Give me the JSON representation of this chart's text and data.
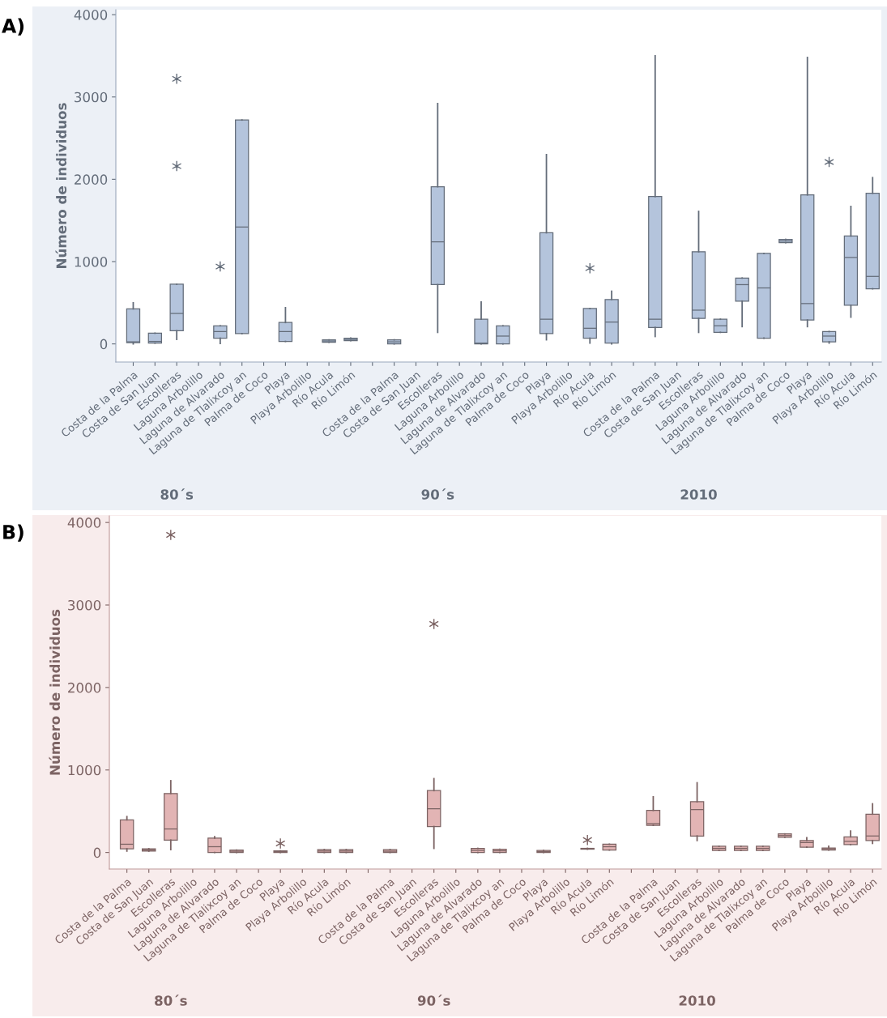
{
  "chart_data": [
    {
      "type": "box",
      "title": "A)",
      "ylabel": "Número de individuos",
      "ylim": [
        -220,
        4060
      ],
      "yticks": [
        0,
        1000,
        2000,
        3000,
        4000
      ],
      "grid": false,
      "marker": "star",
      "categories": [
        "Costa de la Palma",
        "Costa de San Juan",
        "Escolleras",
        "Laguna Arbolillo",
        "Laguna de Alvarado",
        "Laguna de Tlalixcoy an",
        "Palma de Coco",
        "Playa",
        "Playa Arbolillo",
        "Río Acula",
        "Río Limón",
        null,
        "Costa de la Palma",
        "Costa de San Juan",
        "Escolleras",
        "Laguna Arbolillo",
        "Laguna de Alvarado",
        "Laguna de Tlalixcoy an",
        "Palma de Coco",
        "Playa",
        "Playa Arbolillo",
        "Río Acula",
        "Río Limón",
        null,
        "Costa de la Palma",
        "Costa de San Juan",
        "Escolleras",
        "Laguna Arbolillo",
        "Laguna de Alvarado",
        "Laguna de Tlalixcoy an",
        "Palma de Coco",
        "Playa",
        "Playa Arbolillo",
        "Río Acula",
        "Río Limón"
      ],
      "series": [
        {
          "color": "#b4c4dc",
          "boxes": [
            {
              "low": 0,
              "q1": 15,
              "median": 25,
              "q3": 425,
              "high": 500
            },
            {
              "low": 10,
              "q1": 10,
              "median": 30,
              "q3": 130,
              "high": 130
            },
            {
              "low": 55,
              "q1": 160,
              "median": 370,
              "q3": 725,
              "high": 725,
              "outliers": [
                2160,
                3220
              ]
            },
            null,
            {
              "low": 5,
              "q1": 70,
              "median": 150,
              "q3": 220,
              "high": 220,
              "outliers": [
                940
              ]
            },
            {
              "low": 125,
              "q1": 125,
              "median": 1420,
              "q3": 2720,
              "high": 2720
            },
            null,
            {
              "low": 30,
              "q1": 30,
              "median": 150,
              "q3": 260,
              "high": 440
            },
            null,
            {
              "low": 20,
              "q1": 20,
              "median": 35,
              "q3": 50,
              "high": 50
            },
            {
              "low": 40,
              "q1": 40,
              "median": 55,
              "q3": 70,
              "high": 70
            },
            null,
            {
              "low": 0,
              "q1": 0,
              "median": 25,
              "q3": 50,
              "high": 50
            },
            null,
            {
              "low": 140,
              "q1": 720,
              "median": 1240,
              "q3": 1910,
              "high": 2920
            },
            null,
            {
              "low": 0,
              "q1": 0,
              "median": 10,
              "q3": 300,
              "high": 510
            },
            {
              "low": 0,
              "q1": 0,
              "median": 95,
              "q3": 220,
              "high": 220
            },
            null,
            {
              "low": 50,
              "q1": 125,
              "median": 300,
              "q3": 1350,
              "high": 2300
            },
            null,
            {
              "low": 10,
              "q1": 70,
              "median": 190,
              "q3": 430,
              "high": 430,
              "outliers": [
                920
              ]
            },
            {
              "low": 0,
              "q1": 10,
              "median": 265,
              "q3": 540,
              "high": 640
            },
            null,
            {
              "low": 90,
              "q1": 200,
              "median": 300,
              "q3": 1790,
              "high": 3500
            },
            null,
            {
              "low": 140,
              "q1": 310,
              "median": 410,
              "q3": 1120,
              "high": 1610
            },
            {
              "low": 140,
              "q1": 140,
              "median": 220,
              "q3": 300,
              "high": 300
            },
            {
              "low": 210,
              "q1": 520,
              "median": 720,
              "q3": 800,
              "high": 800
            },
            {
              "low": 70,
              "q1": 70,
              "median": 680,
              "q3": 1100,
              "high": 1100
            },
            {
              "low": 1230,
              "q1": 1230,
              "median": 1250,
              "q3": 1270,
              "high": 1270
            },
            {
              "low": 210,
              "q1": 290,
              "median": 490,
              "q3": 1810,
              "high": 3480
            },
            {
              "low": 10,
              "q1": 25,
              "median": 95,
              "q3": 150,
              "high": 150,
              "outliers": [
                2210
              ]
            },
            {
              "low": 325,
              "q1": 470,
              "median": 1050,
              "q3": 1310,
              "high": 1670
            },
            {
              "low": 670,
              "q1": 670,
              "median": 820,
              "q3": 1830,
              "high": 2020
            }
          ]
        }
      ],
      "annotations": [
        "80´s",
        "90´s",
        "2010"
      ]
    },
    {
      "type": "box",
      "title": "B)",
      "ylabel": "Número de individuos",
      "ylim": [
        -200,
        4080
      ],
      "yticks": [
        0,
        1000,
        2000,
        3000,
        4000
      ],
      "grid": false,
      "marker": "star",
      "categories": [
        "Costa de la Palma",
        "Costa de San Juan",
        "Escolleras",
        "Laguna Arbolillo",
        "Laguna de Alvarado",
        "Laguna de Tlalixcoy an",
        "Palma de Coco",
        "Playa",
        "Playa Arbolillo",
        "Río Acula",
        "Río Limón",
        null,
        "Costa de la Palma",
        "Costa de San Juan",
        "Escolleras",
        "Laguna Arbolillo",
        "Laguna de Alvarado",
        "Laguna de Tlalixcoy an",
        "Palma de Coco",
        "Playa",
        "Playa Arbolillo",
        "Río Acula",
        "Río Limón",
        null,
        "Costa de la Palma",
        "Costa de San Juan",
        "Escolleras",
        "Laguna Arbolillo",
        "Laguna de Alvarado",
        "Laguna de Tlalixcoy an",
        "Palma de Coco",
        "Playa",
        "Playa Arbolillo",
        "Río Acula",
        "Río Limón"
      ],
      "series": [
        {
          "color": "#e2b4b4",
          "boxes": [
            {
              "low": 17,
              "q1": 45,
              "median": 100,
              "q3": 395,
              "high": 435
            },
            {
              "low": 17,
              "q1": 17,
              "median": 30,
              "q3": 45,
              "high": 45
            },
            {
              "low": 35,
              "q1": 150,
              "median": 285,
              "q3": 715,
              "high": 870,
              "outliers": [
                3850
              ]
            },
            null,
            {
              "low": 0,
              "q1": 0,
              "median": 70,
              "q3": 175,
              "high": 190
            },
            {
              "low": 0,
              "q1": 0,
              "median": 15,
              "q3": 30,
              "high": 30
            },
            null,
            {
              "low": 0,
              "q1": 0,
              "median": 10,
              "q3": 20,
              "high": 20,
              "outliers": [
                110
              ]
            },
            null,
            {
              "low": 0,
              "q1": 0,
              "median": 17,
              "q3": 35,
              "high": 35
            },
            {
              "low": 0,
              "q1": 0,
              "median": 17,
              "q3": 35,
              "high": 35
            },
            null,
            {
              "low": 0,
              "q1": 0,
              "median": 15,
              "q3": 35,
              "high": 35
            },
            null,
            {
              "low": 50,
              "q1": 315,
              "median": 530,
              "q3": 750,
              "high": 895,
              "outliers": [
                2770
              ]
            },
            null,
            {
              "low": 0,
              "q1": 0,
              "median": 25,
              "q3": 50,
              "high": 50
            },
            {
              "low": 0,
              "q1": 0,
              "median": 20,
              "q3": 40,
              "high": 40
            },
            null,
            {
              "low": 0,
              "q1": 0,
              "median": 10,
              "q3": 25,
              "high": 25
            },
            null,
            {
              "low": 40,
              "q1": 40,
              "median": 45,
              "q3": 50,
              "high": 50,
              "outliers": [
                150
              ]
            },
            {
              "low": 30,
              "q1": 30,
              "median": 70,
              "q3": 100,
              "high": 100
            },
            null,
            {
              "low": 330,
              "q1": 330,
              "median": 350,
              "q3": 510,
              "high": 675
            },
            null,
            {
              "low": 145,
              "q1": 200,
              "median": 520,
              "q3": 615,
              "high": 845
            },
            {
              "low": 25,
              "q1": 25,
              "median": 50,
              "q3": 75,
              "high": 75
            },
            {
              "low": 25,
              "q1": 25,
              "median": 50,
              "q3": 75,
              "high": 75
            },
            {
              "low": 25,
              "q1": 25,
              "median": 50,
              "q3": 75,
              "high": 75
            },
            {
              "low": 185,
              "q1": 185,
              "median": 205,
              "q3": 225,
              "high": 225
            },
            {
              "low": 65,
              "q1": 65,
              "median": 120,
              "q3": 145,
              "high": 180
            },
            {
              "low": 30,
              "q1": 30,
              "median": 45,
              "q3": 55,
              "high": 75
            },
            {
              "low": 95,
              "q1": 95,
              "median": 135,
              "q3": 190,
              "high": 260
            },
            {
              "low": 110,
              "q1": 145,
              "median": 200,
              "q3": 465,
              "high": 590
            }
          ]
        }
      ],
      "annotations": [
        "80´s",
        "90´s",
        "2010"
      ]
    }
  ]
}
